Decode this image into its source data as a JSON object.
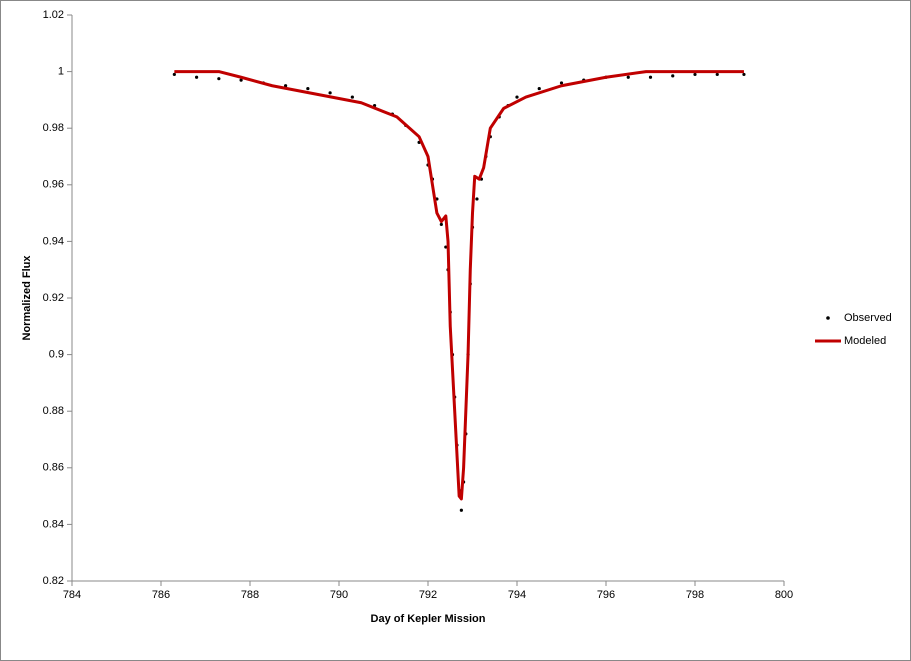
{
  "chart_data": {
    "type": "scatter",
    "xlabel": "Day of Kepler Mission",
    "ylabel": "Normalized Flux",
    "xlim": [
      784,
      800
    ],
    "xticks": [
      784,
      786,
      788,
      790,
      792,
      794,
      796,
      798,
      800
    ],
    "ylim": [
      0.82,
      1.02
    ],
    "yticks": [
      0.82,
      0.84,
      0.86,
      0.88,
      0.9,
      0.92,
      0.94,
      0.96,
      0.98,
      1,
      1.02
    ],
    "grid": false,
    "legend": "right",
    "series": [
      {
        "name": "Observed",
        "color": "#000000",
        "mode": "markers",
        "x": [
          786.3,
          786.8,
          787.3,
          787.8,
          788.3,
          788.8,
          789.3,
          789.8,
          790.3,
          790.8,
          791.2,
          791.5,
          791.8,
          792.0,
          792.1,
          792.2,
          792.3,
          792.4,
          792.45,
          792.5,
          792.55,
          792.6,
          792.65,
          792.7,
          792.75,
          792.8,
          792.85,
          792.9,
          792.95,
          793.0,
          793.1,
          793.2,
          793.3,
          793.4,
          793.6,
          793.8,
          794.0,
          794.5,
          795.0,
          795.5,
          796.0,
          796.5,
          797.0,
          797.5,
          798.0,
          798.5,
          799.1
        ],
        "values": [
          0.999,
          0.998,
          0.9975,
          0.997,
          0.996,
          0.995,
          0.994,
          0.9925,
          0.991,
          0.988,
          0.985,
          0.981,
          0.975,
          0.967,
          0.962,
          0.955,
          0.946,
          0.938,
          0.93,
          0.915,
          0.9,
          0.885,
          0.868,
          0.852,
          0.845,
          0.855,
          0.872,
          0.9,
          0.925,
          0.945,
          0.955,
          0.962,
          0.97,
          0.977,
          0.984,
          0.988,
          0.991,
          0.994,
          0.996,
          0.997,
          0.998,
          0.998,
          0.998,
          0.9985,
          0.999,
          0.999,
          0.999
        ]
      },
      {
        "name": "Modeled",
        "color": "#c00000",
        "mode": "line",
        "x": [
          786.3,
          787.3,
          787.8,
          788.5,
          789.5,
          790.5,
          791.3,
          791.8,
          792.0,
          792.1,
          792.2,
          792.3,
          792.4,
          792.45,
          792.5,
          792.6,
          792.7,
          792.75,
          792.8,
          792.9,
          792.95,
          793.0,
          793.05,
          793.15,
          793.25,
          793.4,
          793.7,
          794.2,
          795.0,
          796.0,
          796.9,
          799.1
        ],
        "values": [
          1,
          1,
          0.998,
          0.995,
          0.992,
          0.989,
          0.984,
          0.977,
          0.97,
          0.96,
          0.95,
          0.947,
          0.949,
          0.94,
          0.91,
          0.88,
          0.85,
          0.849,
          0.86,
          0.9,
          0.93,
          0.95,
          0.963,
          0.962,
          0.966,
          0.98,
          0.987,
          0.991,
          0.995,
          0.998,
          1,
          1
        ]
      }
    ]
  }
}
